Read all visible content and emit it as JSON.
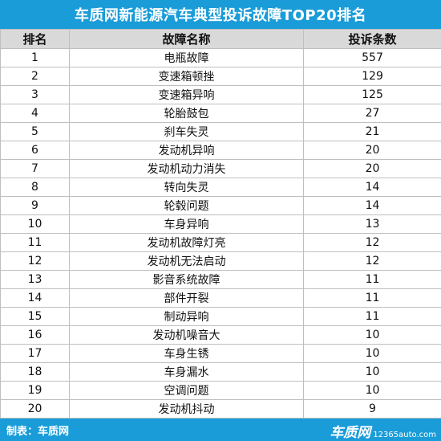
{
  "title": "车质网新能源汽车典型投诉故障TOP20排名",
  "headers": [
    "排名",
    "故障名称",
    "投诉条数"
  ],
  "rows": [
    {
      "rank": "1",
      "fault": "电瓶故障",
      "count": "557"
    },
    {
      "rank": "2",
      "fault": "变速箱顿挫",
      "count": "129"
    },
    {
      "rank": "3",
      "fault": "变速箱异响",
      "count": "125"
    },
    {
      "rank": "4",
      "fault": "轮胎鼓包",
      "count": "27"
    },
    {
      "rank": "5",
      "fault": "刹车失灵",
      "count": "21"
    },
    {
      "rank": "6",
      "fault": "发动机异响",
      "count": "20"
    },
    {
      "rank": "7",
      "fault": "发动机动力消失",
      "count": "20"
    },
    {
      "rank": "8",
      "fault": "转向失灵",
      "count": "14"
    },
    {
      "rank": "9",
      "fault": "轮毂问题",
      "count": "14"
    },
    {
      "rank": "10",
      "fault": "车身异响",
      "count": "13"
    },
    {
      "rank": "11",
      "fault": "发动机故障灯亮",
      "count": "12"
    },
    {
      "rank": "12",
      "fault": "发动机无法启动",
      "count": "12"
    },
    {
      "rank": "13",
      "fault": "影音系统故障",
      "count": "11"
    },
    {
      "rank": "14",
      "fault": "部件开裂",
      "count": "11"
    },
    {
      "rank": "15",
      "fault": "制动异响",
      "count": "11"
    },
    {
      "rank": "16",
      "fault": "发动机噪音大",
      "count": "10"
    },
    {
      "rank": "17",
      "fault": "车身生锈",
      "count": "10"
    },
    {
      "rank": "18",
      "fault": "车身漏水",
      "count": "10"
    },
    {
      "rank": "19",
      "fault": "空调问题",
      "count": "10"
    },
    {
      "rank": "20",
      "fault": "发动机抖动",
      "count": "9"
    }
  ],
  "footer": {
    "credit": "制表：车质网",
    "watermark_brand": "车质网",
    "watermark_url": "12365auto.com"
  },
  "colors": {
    "title_bar": "#1a9cd8",
    "header_row": "#d9d9d9",
    "grid": "#bfbfbf"
  }
}
